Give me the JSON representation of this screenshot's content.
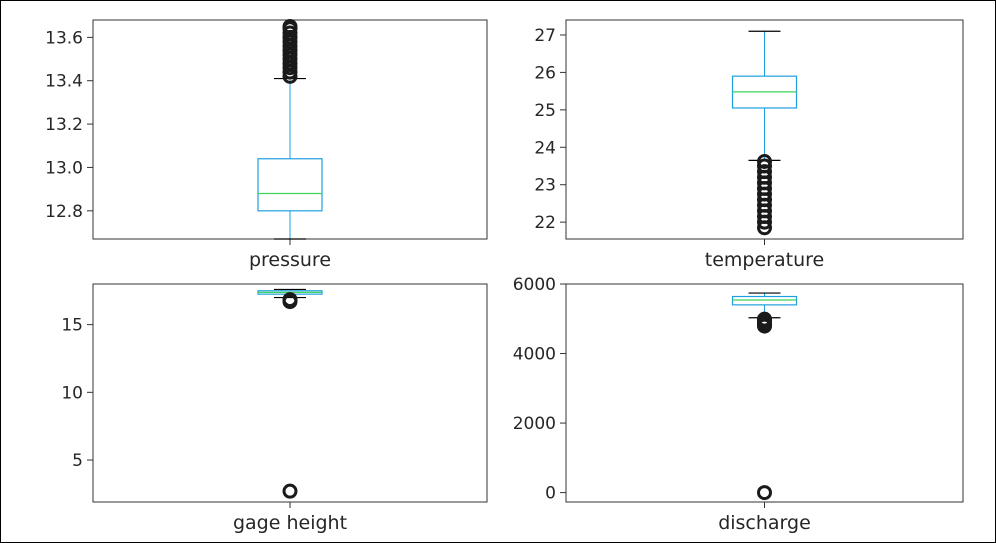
{
  "colors": {
    "box": "#1f9fe0",
    "median": "#3fd45a",
    "whisker": "#1f9fe0",
    "cap": "#000000",
    "flier": "#1a1a1a",
    "axes": "#333333"
  },
  "chart_data": [
    {
      "type": "box",
      "xlabel": "pressure",
      "ylim": [
        12.67,
        13.68
      ],
      "yticks": [
        12.8,
        13.0,
        13.2,
        13.4,
        13.6
      ],
      "ytick_labels": [
        "12.8",
        "13.0",
        "13.2",
        "13.4",
        "13.6"
      ],
      "whisker_low": 12.67,
      "q1": 12.8,
      "median": 12.88,
      "q3": 13.04,
      "whisker_high": 13.41,
      "fliers_low": [],
      "fliers_high": [
        13.42,
        13.44,
        13.46,
        13.48,
        13.5,
        13.52,
        13.54,
        13.56,
        13.58,
        13.6,
        13.62,
        13.64,
        13.65
      ]
    },
    {
      "type": "box",
      "xlabel": "temperature",
      "ylim": [
        21.55,
        27.4
      ],
      "yticks": [
        22,
        23,
        24,
        25,
        26,
        27
      ],
      "ytick_labels": [
        "22",
        "23",
        "24",
        "25",
        "26",
        "27"
      ],
      "whisker_low": 23.65,
      "q1": 25.05,
      "median": 25.48,
      "q3": 25.9,
      "whisker_high": 27.1,
      "fliers_low": [
        21.85,
        22.0,
        22.15,
        22.3,
        22.45,
        22.6,
        22.75,
        22.9,
        23.05,
        23.2,
        23.35,
        23.5,
        23.62
      ],
      "fliers_high": []
    },
    {
      "type": "box",
      "xlabel": "gage height",
      "ylim": [
        1.9,
        18.0
      ],
      "yticks": [
        5,
        10,
        15
      ],
      "ytick_labels": [
        "5",
        "10",
        "15"
      ],
      "whisker_low": 17.0,
      "q1": 17.25,
      "median": 17.38,
      "q3": 17.5,
      "whisker_high": 17.6,
      "fliers_low": [
        2.7,
        16.7,
        16.85
      ],
      "fliers_high": []
    },
    {
      "type": "box",
      "xlabel": "discharge",
      "ylim": [
        -270,
        6000
      ],
      "yticks": [
        0,
        2000,
        4000,
        6000
      ],
      "ytick_labels": [
        "0",
        "2000",
        "4000",
        "6000"
      ],
      "whisker_low": 5030,
      "q1": 5400,
      "median": 5540,
      "q3": 5640,
      "whisker_high": 5740,
      "fliers_low": [
        0,
        4790,
        4830,
        4870,
        4910,
        4950,
        4990
      ],
      "fliers_high": []
    }
  ]
}
